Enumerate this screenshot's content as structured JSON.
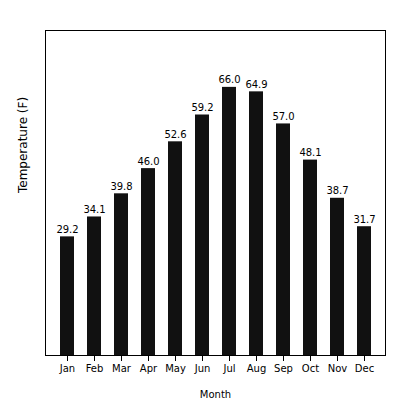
{
  "chart_data": {
    "type": "bar",
    "xlabel": "Month",
    "ylabel": "Temperature (F)",
    "categories": [
      "Jan",
      "Feb",
      "Mar",
      "Apr",
      "May",
      "Jun",
      "Jul",
      "Aug",
      "Sep",
      "Oct",
      "Nov",
      "Dec"
    ],
    "values": [
      29.2,
      34.1,
      39.8,
      46.0,
      52.6,
      59.2,
      66.0,
      64.9,
      57.0,
      48.1,
      38.7,
      31.7
    ],
    "value_labels": [
      "29.2",
      "34.1",
      "39.8",
      "46.0",
      "52.6",
      "59.2",
      "66.0",
      "64.9",
      "57.0",
      "48.1",
      "38.7",
      "31.7"
    ],
    "color": "#111111",
    "ylim": [
      0,
      80
    ],
    "grid": false,
    "data_labels": true,
    "tick_labels": "x"
  }
}
